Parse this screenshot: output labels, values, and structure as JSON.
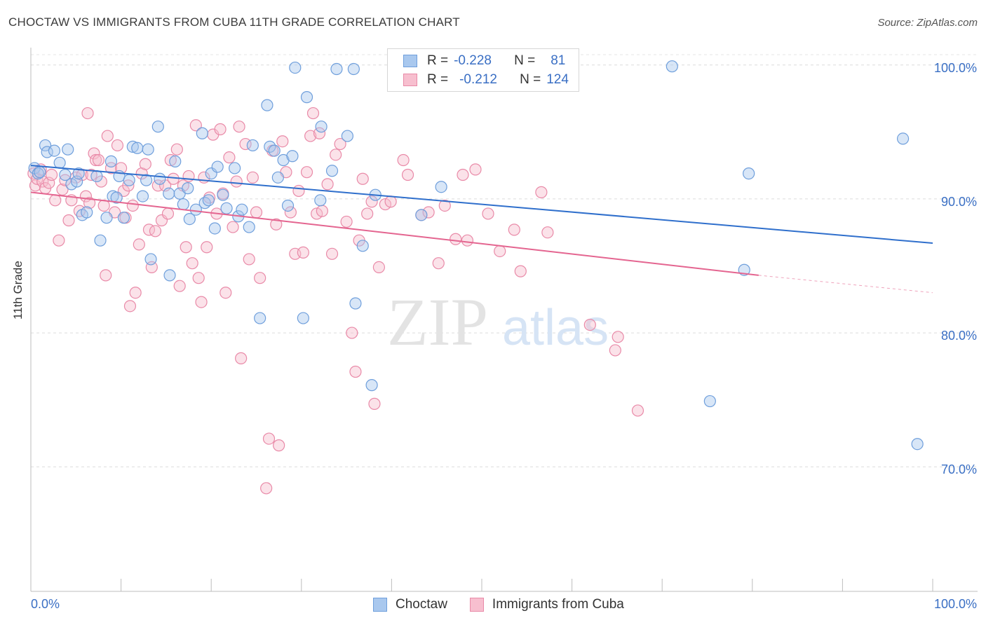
{
  "title": "CHOCTAW VS IMMIGRANTS FROM CUBA 11TH GRADE CORRELATION CHART",
  "source": "Source: ZipAtlas.com",
  "watermark": {
    "part1": "ZIP",
    "part2": "atlas"
  },
  "legend": {
    "rows": [
      {
        "r_label": "R =",
        "r_value": "-0.228",
        "n_label": "N =",
        "n_value": "81"
      },
      {
        "r_label": "R =",
        "r_value": "-0.212",
        "n_label": "N =",
        "n_value": "124"
      }
    ]
  },
  "colors": {
    "blue_fill": "#a9c8ee",
    "blue_stroke": "#6f9fdc",
    "blue_line": "#2f6fcc",
    "pink_fill": "#f7bfcf",
    "pink_stroke": "#e98aa8",
    "pink_line": "#e46590",
    "tick_text": "#3a6fc4"
  },
  "chart_data": {
    "type": "scatter",
    "title": "CHOCTAW VS IMMIGRANTS FROM CUBA 11TH GRADE CORRELATION CHART",
    "xlabel": "",
    "ylabel": "11th Grade",
    "xlim": [
      0,
      100
    ],
    "ylim": [
      60.7,
      101.4
    ],
    "x_tick_labels": [
      "0.0%",
      "100.0%"
    ],
    "y_ticks": [
      70,
      80,
      90,
      100
    ],
    "y_tick_labels": [
      "70.0%",
      "80.0%",
      "90.0%",
      "100.0%"
    ],
    "grid": true,
    "legend_position": "top-center",
    "series": [
      {
        "name": "Choctaw",
        "r": -0.228,
        "n": 81,
        "trend": {
          "x0": 0,
          "y0": 92.5,
          "x1": 100,
          "y1": 86.7
        },
        "points": [
          [
            0.4,
            92.3
          ],
          [
            0.8,
            91.9
          ],
          [
            1.0,
            92.0
          ],
          [
            1.6,
            94.0
          ],
          [
            1.8,
            93.5
          ],
          [
            2.6,
            93.6
          ],
          [
            3.2,
            92.7
          ],
          [
            3.8,
            91.8
          ],
          [
            4.1,
            93.7
          ],
          [
            4.5,
            91.1
          ],
          [
            5.1,
            91.3
          ],
          [
            5.3,
            91.9
          ],
          [
            5.7,
            88.8
          ],
          [
            6.2,
            89.0
          ],
          [
            7.3,
            91.7
          ],
          [
            7.7,
            86.9
          ],
          [
            8.4,
            88.6
          ],
          [
            8.9,
            92.8
          ],
          [
            9.1,
            90.2
          ],
          [
            9.5,
            90.1
          ],
          [
            9.8,
            91.7
          ],
          [
            10.3,
            88.6
          ],
          [
            10.9,
            91.4
          ],
          [
            11.3,
            93.9
          ],
          [
            11.8,
            93.8
          ],
          [
            12.4,
            90.2
          ],
          [
            12.8,
            91.4
          ],
          [
            13.0,
            93.7
          ],
          [
            13.3,
            85.5
          ],
          [
            14.1,
            95.4
          ],
          [
            14.3,
            91.5
          ],
          [
            15.3,
            90.4
          ],
          [
            15.4,
            84.3
          ],
          [
            16.0,
            92.8
          ],
          [
            16.5,
            90.4
          ],
          [
            16.9,
            89.6
          ],
          [
            17.4,
            90.8
          ],
          [
            17.6,
            88.5
          ],
          [
            18.3,
            89.2
          ],
          [
            19.0,
            94.9
          ],
          [
            19.3,
            89.7
          ],
          [
            19.7,
            89.9
          ],
          [
            20.0,
            91.9
          ],
          [
            20.4,
            87.8
          ],
          [
            20.7,
            92.4
          ],
          [
            21.3,
            90.3
          ],
          [
            21.7,
            89.3
          ],
          [
            22.6,
            92.3
          ],
          [
            23.0,
            88.7
          ],
          [
            23.4,
            89.2
          ],
          [
            24.2,
            87.9
          ],
          [
            24.6,
            94.0
          ],
          [
            25.4,
            81.1
          ],
          [
            26.2,
            97.0
          ],
          [
            26.5,
            93.9
          ],
          [
            27.0,
            93.6
          ],
          [
            27.4,
            91.6
          ],
          [
            28.0,
            92.9
          ],
          [
            28.5,
            89.5
          ],
          [
            29.0,
            93.2
          ],
          [
            29.3,
            99.8
          ],
          [
            30.2,
            81.1
          ],
          [
            30.6,
            97.6
          ],
          [
            32.1,
            89.9
          ],
          [
            32.2,
            95.4
          ],
          [
            33.4,
            92.1
          ],
          [
            33.9,
            99.7
          ],
          [
            35.1,
            94.7
          ],
          [
            35.8,
            99.7
          ],
          [
            36.0,
            82.2
          ],
          [
            36.8,
            86.5
          ],
          [
            37.8,
            76.1
          ],
          [
            38.2,
            90.3
          ],
          [
            43.3,
            88.8
          ],
          [
            45.5,
            90.9
          ],
          [
            71.1,
            99.9
          ],
          [
            75.3,
            74.9
          ],
          [
            79.1,
            84.7
          ],
          [
            79.6,
            91.9
          ],
          [
            96.7,
            94.5
          ],
          [
            98.3,
            71.7
          ]
        ]
      },
      {
        "name": "Immigrants from Cuba",
        "r": -0.212,
        "n": 124,
        "trend": {
          "x0": 0,
          "y0": 90.5,
          "x1": 80.7,
          "y1": 84.3,
          "dash_x1": 100,
          "dash_y1": 83.0
        },
        "points": [
          [
            0.3,
            91.9
          ],
          [
            0.5,
            91.0
          ],
          [
            0.7,
            91.5
          ],
          [
            1.1,
            92.2
          ],
          [
            1.3,
            91.3
          ],
          [
            1.6,
            90.8
          ],
          [
            2.0,
            91.2
          ],
          [
            2.3,
            91.8
          ],
          [
            2.7,
            89.9
          ],
          [
            3.1,
            86.9
          ],
          [
            3.5,
            90.7
          ],
          [
            3.8,
            91.4
          ],
          [
            4.2,
            88.4
          ],
          [
            4.5,
            89.9
          ],
          [
            5.0,
            91.6
          ],
          [
            5.4,
            89.1
          ],
          [
            5.7,
            91.8
          ],
          [
            6.1,
            90.2
          ],
          [
            6.3,
            96.4
          ],
          [
            6.5,
            89.7
          ],
          [
            6.7,
            91.8
          ],
          [
            7.0,
            93.4
          ],
          [
            7.2,
            92.9
          ],
          [
            7.5,
            92.9
          ],
          [
            7.8,
            91.3
          ],
          [
            8.1,
            89.5
          ],
          [
            8.3,
            84.3
          ],
          [
            8.5,
            94.7
          ],
          [
            8.9,
            92.3
          ],
          [
            9.3,
            89.0
          ],
          [
            9.6,
            94.0
          ],
          [
            10.0,
            92.3
          ],
          [
            10.3,
            90.6
          ],
          [
            10.5,
            88.6
          ],
          [
            10.8,
            91.0
          ],
          [
            11.0,
            82.0
          ],
          [
            11.3,
            89.5
          ],
          [
            11.6,
            83.0
          ],
          [
            12.0,
            86.6
          ],
          [
            12.3,
            91.9
          ],
          [
            12.7,
            92.6
          ],
          [
            13.1,
            87.7
          ],
          [
            13.4,
            84.9
          ],
          [
            13.8,
            87.6
          ],
          [
            14.1,
            91.0
          ],
          [
            14.5,
            88.4
          ],
          [
            14.9,
            91.0
          ],
          [
            15.2,
            88.9
          ],
          [
            15.5,
            92.9
          ],
          [
            15.8,
            91.5
          ],
          [
            16.2,
            93.7
          ],
          [
            16.5,
            83.5
          ],
          [
            16.9,
            91.0
          ],
          [
            17.2,
            86.4
          ],
          [
            17.5,
            91.7
          ],
          [
            17.9,
            85.2
          ],
          [
            18.3,
            95.5
          ],
          [
            18.6,
            84.1
          ],
          [
            18.9,
            82.3
          ],
          [
            19.2,
            91.6
          ],
          [
            19.5,
            86.4
          ],
          [
            19.8,
            90.1
          ],
          [
            20.2,
            94.8
          ],
          [
            20.6,
            88.9
          ],
          [
            21.0,
            95.2
          ],
          [
            21.3,
            90.4
          ],
          [
            21.6,
            83.0
          ],
          [
            22.0,
            93.1
          ],
          [
            22.4,
            87.9
          ],
          [
            22.8,
            91.3
          ],
          [
            23.1,
            95.4
          ],
          [
            23.3,
            78.1
          ],
          [
            23.8,
            94.1
          ],
          [
            24.2,
            85.5
          ],
          [
            24.6,
            91.6
          ],
          [
            25.0,
            89.0
          ],
          [
            25.4,
            84.1
          ],
          [
            26.1,
            68.4
          ],
          [
            26.4,
            72.1
          ],
          [
            26.8,
            93.6
          ],
          [
            27.2,
            88.1
          ],
          [
            27.5,
            71.6
          ],
          [
            27.9,
            94.3
          ],
          [
            28.3,
            92.0
          ],
          [
            28.8,
            89.0
          ],
          [
            29.3,
            85.9
          ],
          [
            29.7,
            90.6
          ],
          [
            30.2,
            86.0
          ],
          [
            30.6,
            92.0
          ],
          [
            31.0,
            94.7
          ],
          [
            31.3,
            96.4
          ],
          [
            31.7,
            88.9
          ],
          [
            32.0,
            94.9
          ],
          [
            32.3,
            89.1
          ],
          [
            32.9,
            91.1
          ],
          [
            33.4,
            85.9
          ],
          [
            33.8,
            93.3
          ],
          [
            34.3,
            94.1
          ],
          [
            35.0,
            88.3
          ],
          [
            35.6,
            80.0
          ],
          [
            36.0,
            77.1
          ],
          [
            36.4,
            86.9
          ],
          [
            36.8,
            91.5
          ],
          [
            37.3,
            88.9
          ],
          [
            37.8,
            89.8
          ],
          [
            38.1,
            74.7
          ],
          [
            38.6,
            84.9
          ],
          [
            39.3,
            89.6
          ],
          [
            39.9,
            89.8
          ],
          [
            41.3,
            92.9
          ],
          [
            41.8,
            91.8
          ],
          [
            43.3,
            88.8
          ],
          [
            44.1,
            89.0
          ],
          [
            45.2,
            85.2
          ],
          [
            45.9,
            89.5
          ],
          [
            47.1,
            87.0
          ],
          [
            47.9,
            91.8
          ],
          [
            48.4,
            86.9
          ],
          [
            49.3,
            92.2
          ],
          [
            50.7,
            88.9
          ],
          [
            52.0,
            86.1
          ],
          [
            53.6,
            87.7
          ],
          [
            54.3,
            84.6
          ],
          [
            56.6,
            90.5
          ],
          [
            57.3,
            87.5
          ],
          [
            62.0,
            80.6
          ],
          [
            64.8,
            78.7
          ],
          [
            65.1,
            79.7
          ],
          [
            67.3,
            74.2
          ]
        ]
      }
    ]
  },
  "bottom_legend": {
    "items": [
      "Choctaw",
      "Immigrants from Cuba"
    ]
  }
}
